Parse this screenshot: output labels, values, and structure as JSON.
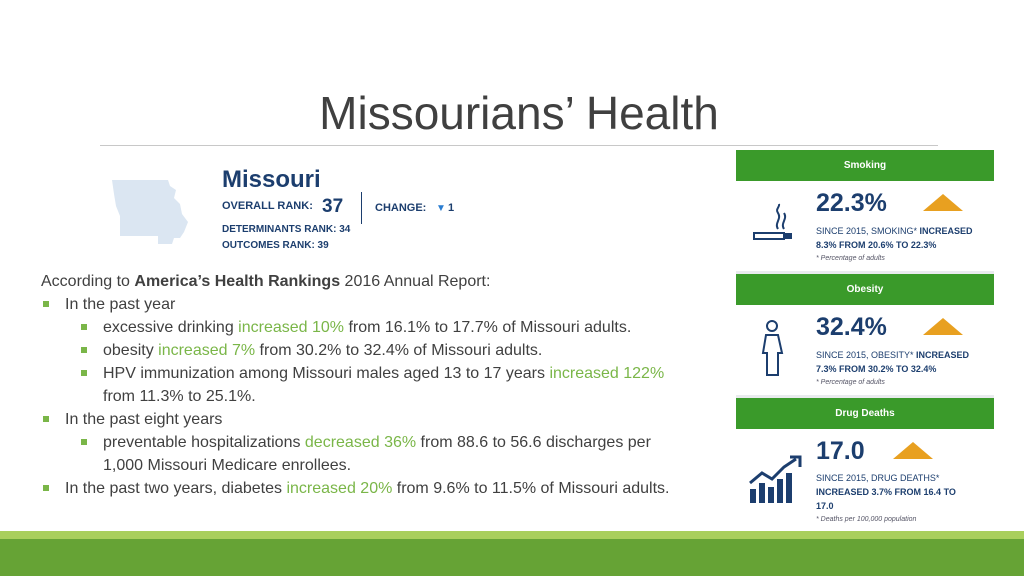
{
  "title": "Missourians’ Health",
  "missouri": {
    "name": "Missouri",
    "overall_rank_label": "OVERALL RANK:",
    "overall_rank": "37",
    "change_label": "CHANGE:",
    "change_value": "1",
    "determinants": "DETERMINANTS RANK: 34",
    "outcomes": "OUTCOMES RANK: 39"
  },
  "intro": {
    "pre": "According to ",
    "bold": "America’s Health Rankings",
    "post": " 2016 Annual Report:"
  },
  "bullets": {
    "past_year": "In the past year",
    "b1": {
      "pre": "excessive drinking ",
      "hl": "increased 10%",
      "post": " from 16.1% to 17.7% of Missouri adults."
    },
    "b2": {
      "pre": "obesity ",
      "hl": "increased 7%",
      "post": " from 30.2% to 32.4% of Missouri adults."
    },
    "b3": {
      "pre": "HPV immunization among Missouri males aged 13 to 17 years ",
      "hl": "increased 122%",
      "cont": "from 11.3% to 25.1%."
    },
    "past_eight": "In the past eight years",
    "b4": {
      "pre": "preventable hospitalizations ",
      "hl": "decreased 36%",
      "post": " from 88.6 to 56.6 discharges per",
      "cont": "1,000 Missouri Medicare enrollees."
    },
    "b5": {
      "pre": "In the past two years, diabetes ",
      "hl": "increased 20%",
      "post": " from 9.6% to 11.5% of Missouri adults."
    }
  },
  "panels": {
    "smoking": {
      "header": "Smoking",
      "value": "22.3%",
      "line1a": "SINCE 2015, SMOKING* ",
      "line1b": "INCREASED",
      "line2a": "8.3% FROM ",
      "line2b": "20.6%",
      "line2c": " TO ",
      "line2d": "22.3%",
      "note": "* Percentage of adults",
      "icon": "cigarette-icon"
    },
    "obesity": {
      "header": "Obesity",
      "value": "32.4%",
      "line1a": "SINCE 2015, OBESITY* ",
      "line1b": "INCREASED",
      "line2a": "7.3% FROM ",
      "line2b": "30.2%",
      "line2c": " TO ",
      "line2d": "32.4%",
      "note": "* Percentage of adults",
      "icon": "person-icon"
    },
    "drug_deaths": {
      "header": "Drug Deaths",
      "value": "17.0",
      "line1a": "SINCE 2015, DRUG DEATHS*",
      "line2a": "INCREASED 3.7% FROM ",
      "line2b": "16.4",
      "line2c": " TO",
      "line3": "17.0",
      "note": "* Deaths per 100,000 population",
      "icon": "rising-chart-icon"
    }
  },
  "colors": {
    "accent_green": "#7ab648",
    "navy": "#1c3e6e",
    "panel_green": "#3a9a2a",
    "arrow_orange": "#e8a020"
  }
}
